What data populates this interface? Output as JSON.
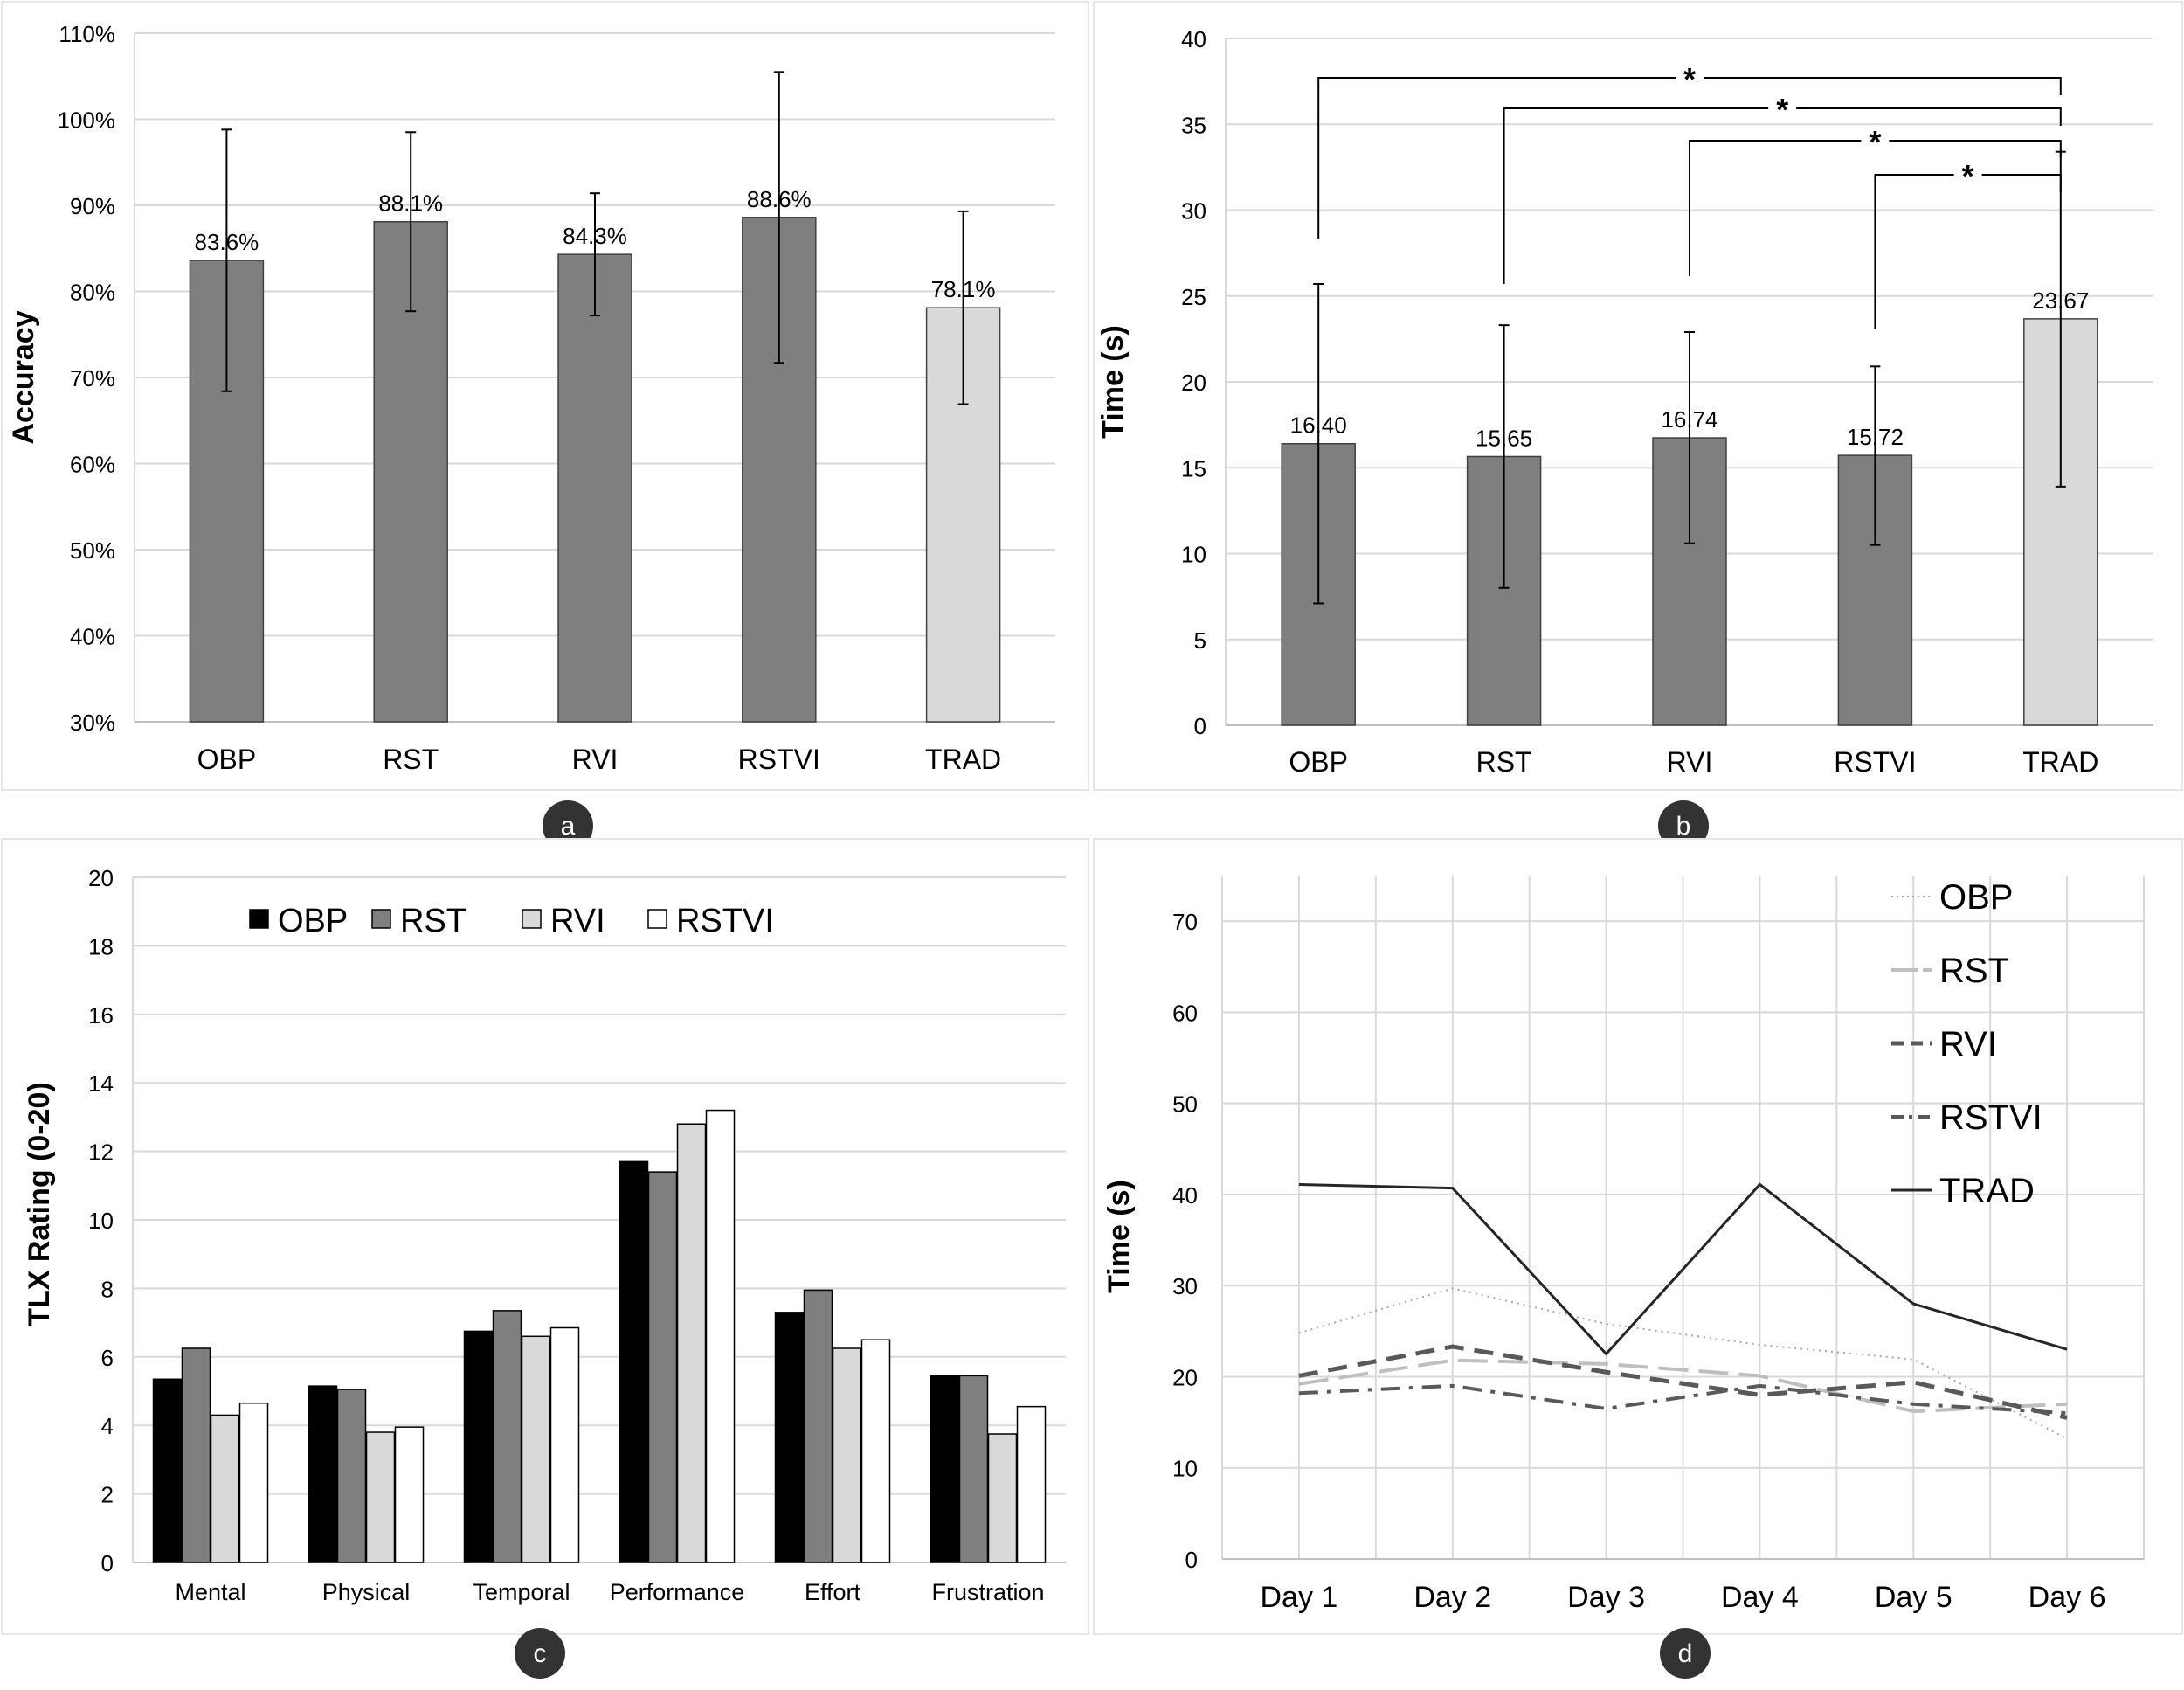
{
  "panels": {
    "a": {
      "label": "a",
      "chart_data": {
        "type": "bar",
        "title": "",
        "xlabel": "",
        "ylabel": "Accuracy",
        "ylim": [
          30,
          110
        ],
        "yticks": [
          "30%",
          "40%",
          "50%",
          "60%",
          "70%",
          "80%",
          "90%",
          "100%",
          "110%"
        ],
        "categories": [
          "OBP",
          "RST",
          "RVI",
          "RSTVI",
          "TRAD"
        ],
        "values": [
          83.6,
          88.1,
          84.3,
          88.6,
          78.1
        ],
        "data_labels": [
          "83.6%",
          "88.1%",
          "84.3%",
          "88.6%",
          "78.1%"
        ],
        "error_low": [
          68.4,
          77.7,
          77.2,
          71.7,
          66.9
        ],
        "error_high": [
          98.8,
          98.5,
          91.4,
          105.5,
          89.3
        ],
        "bar_colors": [
          "#7f7f7f",
          "#7f7f7f",
          "#7f7f7f",
          "#7f7f7f",
          "#d9d9d9"
        ],
        "grid": true
      }
    },
    "b": {
      "label": "b",
      "chart_data": {
        "type": "bar",
        "title": "",
        "xlabel": "",
        "ylabel": "Time (s)",
        "ylim": [
          0,
          40
        ],
        "yticks": [
          "0",
          "5",
          "10",
          "15",
          "20",
          "25",
          "30",
          "35",
          "40"
        ],
        "categories": [
          "OBP",
          "RST",
          "RVI",
          "RSTVI",
          "TRAD"
        ],
        "values": [
          16.4,
          15.65,
          16.74,
          15.72,
          23.67
        ],
        "data_labels": [
          "16.40",
          "15.65",
          "16.74",
          "15.72",
          "23.67"
        ],
        "error_low": [
          7.1,
          8.0,
          10.6,
          10.5,
          13.9
        ],
        "error_high": [
          25.7,
          23.3,
          22.9,
          20.9,
          33.4
        ],
        "bar_colors": [
          "#7f7f7f",
          "#7f7f7f",
          "#7f7f7f",
          "#7f7f7f",
          "#d9d9d9"
        ],
        "grid": true,
        "significance": [
          {
            "from": "OBP",
            "to": "TRAD",
            "label": "*"
          },
          {
            "from": "RST",
            "to": "TRAD",
            "label": "*"
          },
          {
            "from": "RVI",
            "to": "TRAD",
            "label": "*"
          },
          {
            "from": "RSTVI",
            "to": "TRAD",
            "label": "*"
          }
        ]
      }
    },
    "c": {
      "label": "c",
      "chart_data": {
        "type": "bar",
        "title": "",
        "xlabel": "",
        "ylabel": "TLX Rating (0-20)",
        "ylim": [
          0,
          20
        ],
        "yticks": [
          "0",
          "2",
          "4",
          "6",
          "8",
          "10",
          "12",
          "14",
          "16",
          "18",
          "20"
        ],
        "categories": [
          "Mental",
          "Physical",
          "Temporal",
          "Performance",
          "Effort",
          "Frustration"
        ],
        "legend_position": "top",
        "grid": true,
        "series": [
          {
            "name": "OBP",
            "color": "#000000",
            "values": [
              5.35,
              5.15,
              6.75,
              11.7,
              7.3,
              5.45
            ]
          },
          {
            "name": "RST",
            "color": "#7f7f7f",
            "values": [
              6.25,
              5.05,
              7.35,
              11.4,
              7.95,
              5.45
            ]
          },
          {
            "name": "RVI",
            "color": "#d9d9d9",
            "values": [
              4.3,
              3.8,
              6.6,
              12.8,
              6.25,
              3.75
            ]
          },
          {
            "name": "RSTVI",
            "color": "#ffffff",
            "values": [
              4.65,
              3.95,
              6.85,
              13.2,
              6.5,
              4.55
            ]
          }
        ]
      }
    },
    "d": {
      "label": "d",
      "chart_data": {
        "type": "line",
        "title": "",
        "xlabel": "",
        "ylabel": "Time (s)",
        "ylim": [
          0,
          75
        ],
        "yticks": [
          "0",
          "10",
          "20",
          "30",
          "40",
          "50",
          "60",
          "70"
        ],
        "categories": [
          "Day 1",
          "Day 2",
          "Day 3",
          "Day 4",
          "Day 5",
          "Day 6"
        ],
        "legend_position": "top-right",
        "grid": true,
        "series": [
          {
            "name": "OBP",
            "color": "#a6a6a6",
            "style": "dotted",
            "values": [
              24.8,
              29.7,
              25.8,
              23.5,
              21.9,
              13.2
            ]
          },
          {
            "name": "RST",
            "color": "#bfbfbf",
            "style": "long-dash",
            "values": [
              19.2,
              21.8,
              21.4,
              20.1,
              16.2,
              17.0
            ]
          },
          {
            "name": "RVI",
            "color": "#595959",
            "style": "dash",
            "values": [
              20.1,
              23.3,
              20.5,
              18.0,
              19.4,
              15.5
            ]
          },
          {
            "name": "RSTVI",
            "color": "#595959",
            "style": "dash-dot",
            "values": [
              18.2,
              19.0,
              16.5,
              19.0,
              17.0,
              16.0
            ]
          },
          {
            "name": "TRAD",
            "color": "#262626",
            "style": "solid",
            "values": [
              41.1,
              40.7,
              22.5,
              41.1,
              28.0,
              23.0
            ]
          }
        ]
      }
    }
  }
}
